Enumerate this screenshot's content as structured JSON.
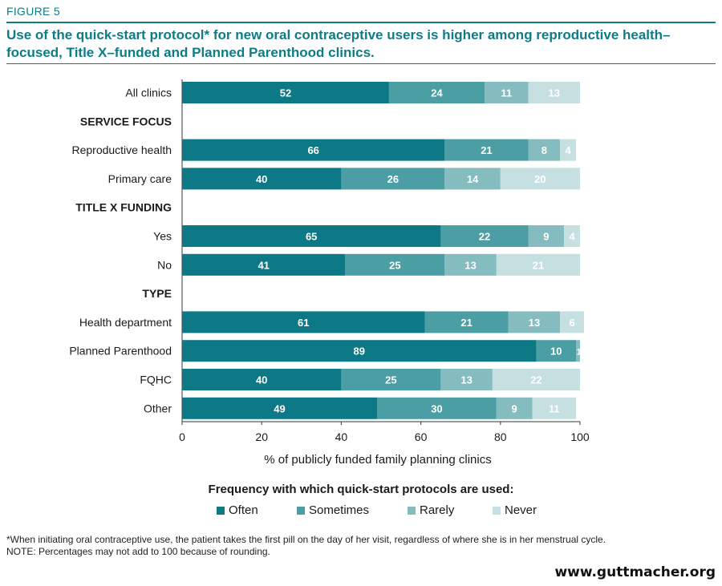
{
  "figure_label": "FIGURE 5",
  "title": "Use of the quick-start protocol* for new oral contraceptive users is higher among reproductive health–focused, Title X–funded and Planned Parenthood clinics.",
  "legend_title": "Frequency with which quick-start protocols are used:",
  "footnotes": {
    "line1": "*When initiating oral contraceptive use, the patient takes the first pill on the day of her visit, regardless of where she is in her menstrual cycle.",
    "line2": "NOTE: Percentages may not add to 100 because of rounding."
  },
  "website": "www.guttmacher.org",
  "colors": {
    "Often": "#0e7986",
    "Sometimes": "#4a9ea4",
    "Rarely": "#84bcc0",
    "Never": "#c6dfe1",
    "accent": "#0f7b87"
  },
  "chart_data": {
    "type": "bar",
    "orientation": "horizontal",
    "stacked": true,
    "xlabel": "% of publicly funded family planning clinics",
    "xlim": [
      0,
      100
    ],
    "xticks": [
      0,
      20,
      40,
      60,
      80,
      100
    ],
    "grid": false,
    "legend_placement": "bottom",
    "series_names": [
      "Often",
      "Sometimes",
      "Rarely",
      "Never"
    ],
    "rows": [
      {
        "kind": "bar",
        "label": "All clinics",
        "values": [
          52,
          24,
          11,
          13
        ]
      },
      {
        "kind": "header",
        "label": "SERVICE FOCUS"
      },
      {
        "kind": "bar",
        "label": "Reproductive health",
        "values": [
          66,
          21,
          8,
          4
        ]
      },
      {
        "kind": "bar",
        "label": "Primary care",
        "values": [
          40,
          26,
          14,
          20
        ]
      },
      {
        "kind": "header",
        "label": "TITLE X FUNDING"
      },
      {
        "kind": "bar",
        "label": "Yes",
        "values": [
          65,
          22,
          9,
          4
        ]
      },
      {
        "kind": "bar",
        "label": "No",
        "values": [
          41,
          25,
          13,
          21
        ]
      },
      {
        "kind": "header",
        "label": "TYPE"
      },
      {
        "kind": "bar",
        "label": "Health department",
        "values": [
          61,
          21,
          13,
          6
        ]
      },
      {
        "kind": "bar",
        "label": "Planned Parenthood",
        "values": [
          89,
          10,
          1,
          0
        ]
      },
      {
        "kind": "bar",
        "label": "FQHC",
        "values": [
          40,
          25,
          13,
          22
        ]
      },
      {
        "kind": "bar",
        "label": "Other",
        "values": [
          49,
          30,
          9,
          11
        ]
      }
    ]
  }
}
